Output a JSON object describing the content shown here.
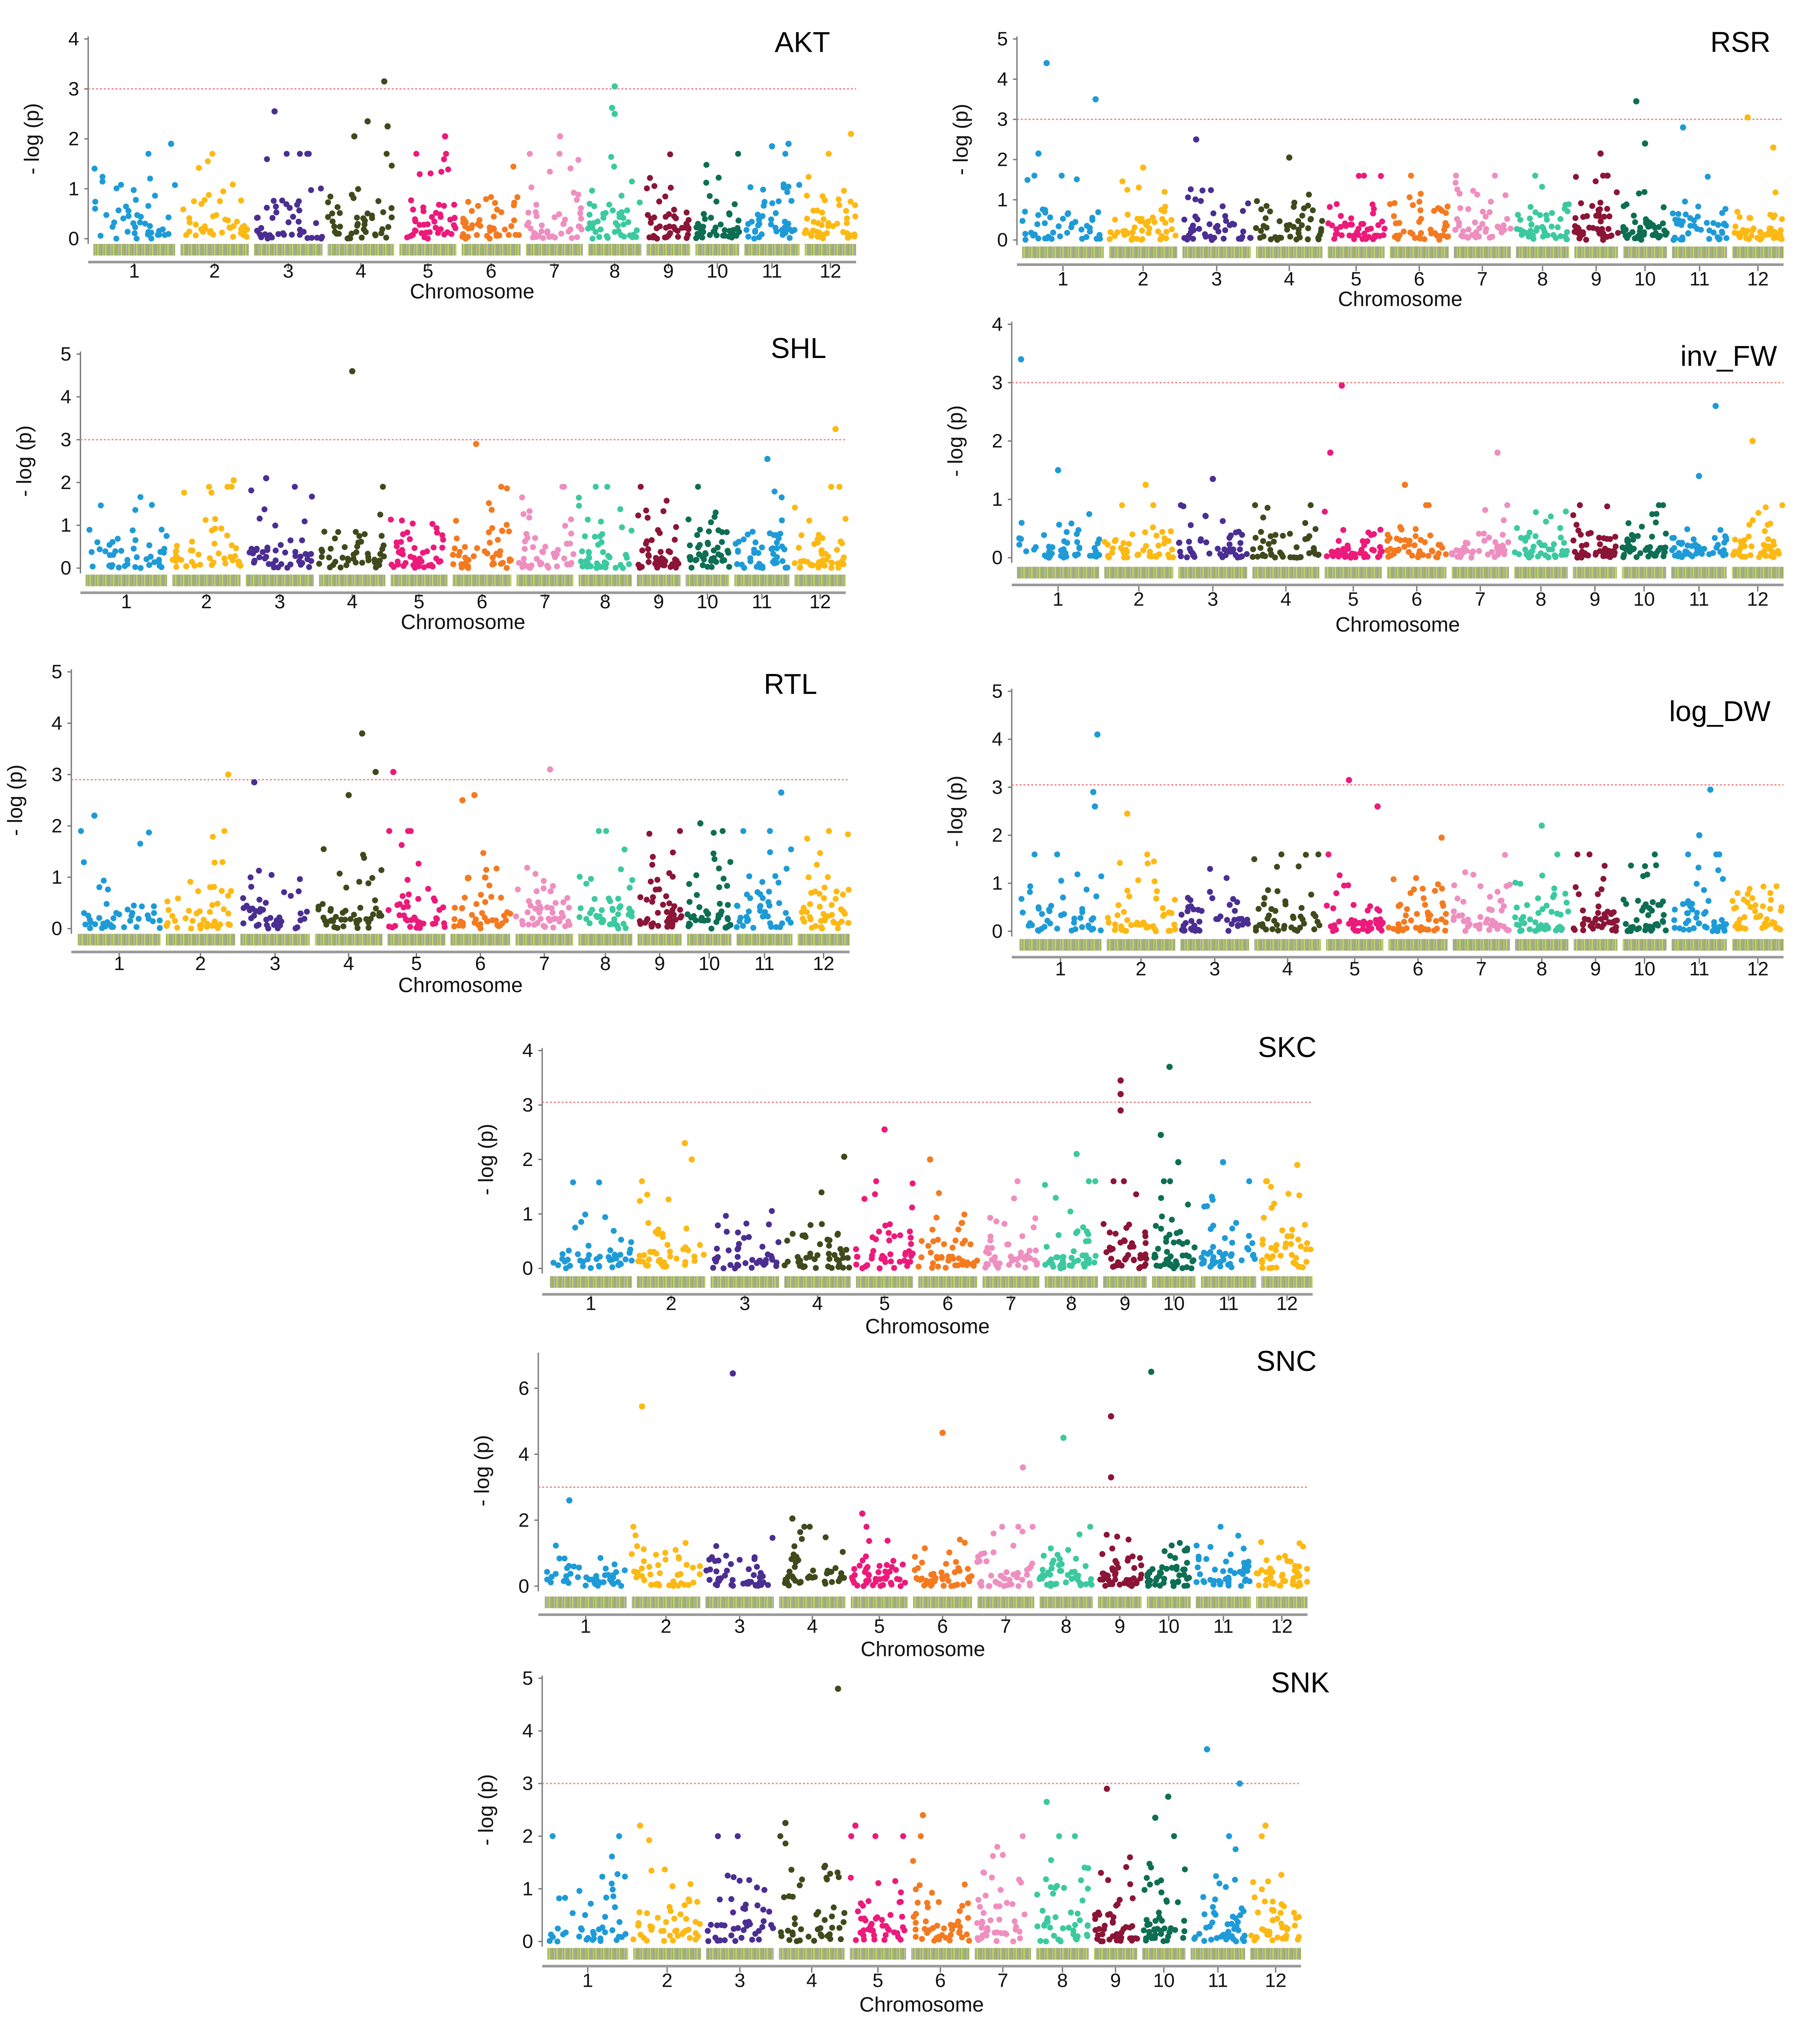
{
  "chart_data": {
    "type": "scatter",
    "subtype": "manhattan",
    "ylabel": "- log (p)",
    "xlabel": "Chromosome",
    "chromosomes": [
      "1",
      "2",
      "3",
      "4",
      "5",
      "6",
      "7",
      "8",
      "9",
      "10",
      "11",
      "12"
    ],
    "chromosome_relative_lengths": [
      43,
      36,
      36,
      35,
      30,
      31,
      30,
      28,
      23,
      23,
      29,
      27
    ],
    "chromosome_colors": [
      "#1E9BD7",
      "#FDB913",
      "#4B2E91",
      "#3F4A1C",
      "#EC1A7A",
      "#F47A20",
      "#EE8FC0",
      "#3CC9A0",
      "#8B1537",
      "#0E6E54",
      "#1E9BD7",
      "#FDB913"
    ],
    "threshold_color": "#F08080",
    "background_points_per_chromosome": 45,
    "note_points": "peaks are [chromosome, relative position within chromosome 0-1, -log(p)]",
    "panels": [
      {
        "title": "AKT",
        "ylim": [
          0,
          4
        ],
        "yticks": [
          "0",
          "1",
          "2",
          "3",
          "4"
        ],
        "threshold": 3,
        "show_xlabel": true,
        "background_max": 1.7,
        "peaks": [
          [
            4,
            0.85,
            3.15
          ],
          [
            8,
            0.5,
            3.05
          ],
          [
            8,
            0.45,
            2.62
          ],
          [
            8,
            0.5,
            2.5
          ],
          [
            3,
            0.3,
            2.55
          ],
          [
            4,
            0.6,
            2.35
          ],
          [
            4,
            0.9,
            2.25
          ],
          [
            4,
            0.4,
            2.05
          ],
          [
            5,
            0.8,
            2.05
          ],
          [
            7,
            0.6,
            2.05
          ],
          [
            12,
            0.9,
            2.1
          ],
          [
            1,
            0.95,
            1.9
          ],
          [
            11,
            0.8,
            1.9
          ],
          [
            11,
            0.5,
            1.85
          ]
        ]
      },
      {
        "title": "RSR",
        "ylim": [
          0,
          5
        ],
        "yticks": [
          "0",
          "1",
          "2",
          "3",
          "4",
          "5"
        ],
        "threshold": 3,
        "show_xlabel": true,
        "background_max": 1.6,
        "peaks": [
          [
            1,
            0.3,
            4.4
          ],
          [
            1,
            0.9,
            3.5
          ],
          [
            10,
            0.3,
            3.45
          ],
          [
            12,
            0.3,
            3.05
          ],
          [
            1,
            0.2,
            2.15
          ],
          [
            3,
            0.2,
            2.5
          ],
          [
            10,
            0.5,
            2.4
          ],
          [
            11,
            0.2,
            2.8
          ],
          [
            12,
            0.8,
            2.3
          ],
          [
            9,
            0.6,
            2.15
          ],
          [
            4,
            0.5,
            2.05
          ],
          [
            2,
            0.5,
            1.8
          ]
        ]
      },
      {
        "title": "SHL",
        "ylim": [
          0,
          5
        ],
        "yticks": [
          "0",
          "1",
          "2",
          "3",
          "4",
          "5"
        ],
        "threshold": 3,
        "show_xlabel": true,
        "background_max": 1.9,
        "peaks": [
          [
            4,
            0.5,
            4.6
          ],
          [
            12,
            0.8,
            3.25
          ],
          [
            6,
            0.4,
            2.9
          ],
          [
            11,
            0.6,
            2.55
          ],
          [
            3,
            0.3,
            2.1
          ],
          [
            2,
            0.9,
            2.05
          ]
        ]
      },
      {
        "title": "inv_FW",
        "ylim": [
          0,
          4
        ],
        "yticks": [
          "0",
          "1",
          "2",
          "3",
          "4"
        ],
        "threshold": 3,
        "show_xlabel": true,
        "background_max": 0.9,
        "peaks": [
          [
            1,
            0.05,
            3.4
          ],
          [
            5,
            0.3,
            2.95
          ],
          [
            11,
            0.8,
            2.6
          ],
          [
            12,
            0.4,
            2.0
          ],
          [
            5,
            0.1,
            1.8
          ],
          [
            7,
            0.8,
            1.8
          ],
          [
            1,
            0.5,
            1.5
          ],
          [
            3,
            0.5,
            1.35
          ],
          [
            11,
            0.5,
            1.4
          ],
          [
            6,
            0.3,
            1.25
          ],
          [
            2,
            0.6,
            1.25
          ]
        ]
      },
      {
        "title": "RTL",
        "ylim": [
          0,
          5
        ],
        "yticks": [
          "0",
          "1",
          "2",
          "3",
          "4",
          "5"
        ],
        "threshold": 2.9,
        "show_xlabel": true,
        "background_max": 1.9,
        "peaks": [
          [
            4,
            0.7,
            3.8
          ],
          [
            4,
            0.9,
            3.05
          ],
          [
            5,
            0.1,
            3.05
          ],
          [
            2,
            0.9,
            3.0
          ],
          [
            7,
            0.6,
            3.1
          ],
          [
            3,
            0.2,
            2.85
          ],
          [
            11,
            0.8,
            2.65
          ],
          [
            4,
            0.5,
            2.6
          ],
          [
            6,
            0.4,
            2.6
          ],
          [
            6,
            0.2,
            2.5
          ],
          [
            1,
            0.2,
            2.2
          ],
          [
            10,
            0.3,
            2.05
          ]
        ]
      },
      {
        "title": "log_DW",
        "ylim": [
          0,
          5
        ],
        "yticks": [
          "0",
          "1",
          "2",
          "3",
          "4",
          "5"
        ],
        "threshold": 3.05,
        "show_xlabel": false,
        "background_max": 1.6,
        "peaks": [
          [
            1,
            0.95,
            4.1
          ],
          [
            5,
            0.4,
            3.15
          ],
          [
            1,
            0.9,
            2.9
          ],
          [
            11,
            0.7,
            2.95
          ],
          [
            5,
            0.9,
            2.6
          ],
          [
            2,
            0.3,
            2.45
          ],
          [
            8,
            0.5,
            2.2
          ],
          [
            11,
            0.5,
            2.0
          ],
          [
            6,
            0.9,
            1.95
          ],
          [
            1,
            0.92,
            2.6
          ]
        ]
      },
      {
        "title": "SKC",
        "ylim": [
          0,
          4
        ],
        "yticks": [
          "0",
          "1",
          "2",
          "3",
          "4"
        ],
        "threshold": 3.05,
        "show_xlabel": true,
        "background_max": 1.6,
        "peaks": [
          [
            10,
            0.4,
            3.7
          ],
          [
            9,
            0.4,
            3.45
          ],
          [
            9,
            0.4,
            3.2
          ],
          [
            9,
            0.4,
            2.9
          ],
          [
            5,
            0.5,
            2.55
          ],
          [
            10,
            0.2,
            2.45
          ],
          [
            2,
            0.7,
            2.3
          ],
          [
            2,
            0.8,
            2.0
          ],
          [
            4,
            0.9,
            2.05
          ],
          [
            6,
            0.2,
            2.0
          ],
          [
            8,
            0.6,
            2.1
          ],
          [
            10,
            0.6,
            1.95
          ],
          [
            11,
            0.4,
            1.95
          ],
          [
            12,
            0.7,
            1.9
          ]
        ]
      },
      {
        "title": "SNC",
        "ylim": [
          0,
          7
        ],
        "yticks": [
          "0",
          "2",
          "4",
          "6"
        ],
        "ytick_values": [
          0,
          2,
          4,
          6
        ],
        "threshold": 3,
        "show_xlabel": true,
        "background_max": 1.8,
        "peaks": [
          [
            3,
            0.4,
            6.45
          ],
          [
            10,
            0.1,
            6.5
          ],
          [
            2,
            0.15,
            5.45
          ],
          [
            9,
            0.3,
            5.15
          ],
          [
            6,
            0.5,
            4.65
          ],
          [
            8,
            0.45,
            4.5
          ],
          [
            7,
            0.8,
            3.6
          ],
          [
            9,
            0.3,
            3.3
          ],
          [
            1,
            0.3,
            2.6
          ],
          [
            5,
            0.2,
            2.2
          ],
          [
            4,
            0.2,
            2.05
          ]
        ]
      },
      {
        "title": "SNK",
        "ylim": [
          0,
          5
        ],
        "yticks": [
          "0",
          "1",
          "2",
          "3",
          "4",
          "5"
        ],
        "threshold": 3,
        "show_xlabel": true,
        "background_max": 2.0,
        "peaks": [
          [
            4,
            0.9,
            4.8
          ],
          [
            11,
            0.3,
            3.65
          ],
          [
            11,
            0.9,
            3.0
          ],
          [
            9,
            0.3,
            2.9
          ],
          [
            10,
            0.6,
            2.75
          ],
          [
            8,
            0.2,
            2.65
          ],
          [
            10,
            0.3,
            2.35
          ],
          [
            6,
            0.2,
            2.4
          ],
          [
            4,
            0.1,
            2.25
          ],
          [
            2,
            0.1,
            2.2
          ],
          [
            5,
            0.1,
            2.2
          ],
          [
            12,
            0.3,
            2.2
          ]
        ]
      }
    ]
  }
}
